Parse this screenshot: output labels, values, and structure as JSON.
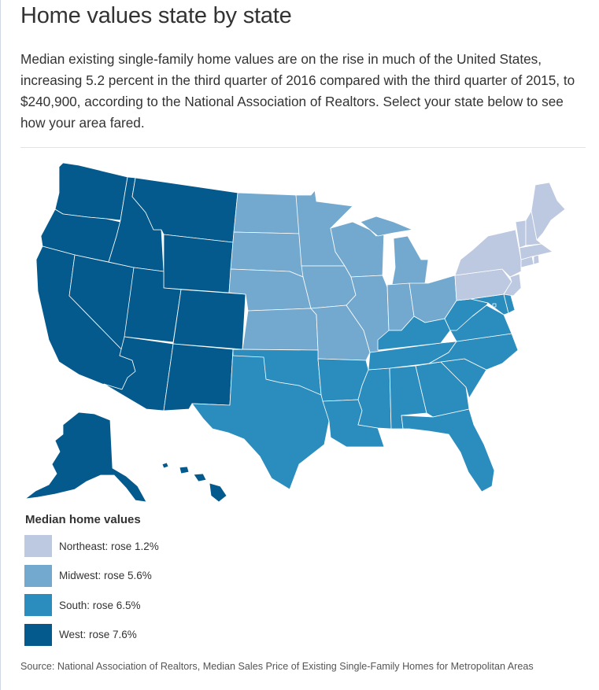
{
  "title": "Home values state by state",
  "intro": "Median existing single-family home values are on the rise in much of the United States, increasing 5.2 percent in the third quarter of 2016 compared with the third quarter of 2015, to $240,900, according to the National Association of Realtors. Select your state below to see how your area fared.",
  "legend": {
    "title": "Median home values",
    "items": [
      {
        "region": "northeast",
        "label": "Northeast: rose 1.2%",
        "color": "#bdc9e1",
        "value": 1.2
      },
      {
        "region": "midwest",
        "label": "Midwest: rose 5.6%",
        "color": "#74a9cf",
        "value": 5.6
      },
      {
        "region": "south",
        "label": "South: rose 6.5%",
        "color": "#2b8cbe",
        "value": 6.5
      },
      {
        "region": "west",
        "label": "West: rose 7.6%",
        "color": "#045a8d",
        "value": 7.6
      }
    ]
  },
  "regions": {
    "west": [
      "WA",
      "OR",
      "CA",
      "NV",
      "ID",
      "MT",
      "WY",
      "UT",
      "CO",
      "AZ",
      "NM",
      "AK",
      "HI"
    ],
    "midwest": [
      "ND",
      "SD",
      "NE",
      "KS",
      "MN",
      "IA",
      "MO",
      "WI",
      "IL",
      "MI",
      "IN",
      "OH"
    ],
    "south": [
      "TX",
      "OK",
      "AR",
      "LA",
      "MS",
      "AL",
      "TN",
      "KY",
      "GA",
      "FL",
      "SC",
      "NC",
      "VA",
      "WV",
      "MD",
      "DE",
      "DC"
    ],
    "northeast": [
      "PA",
      "NY",
      "NJ",
      "CT",
      "RI",
      "MA",
      "VT",
      "NH",
      "ME"
    ]
  },
  "source": "Source: National Association of Realtors, Median Sales Price of Existing Single-Family Homes for Metropolitan Areas"
}
